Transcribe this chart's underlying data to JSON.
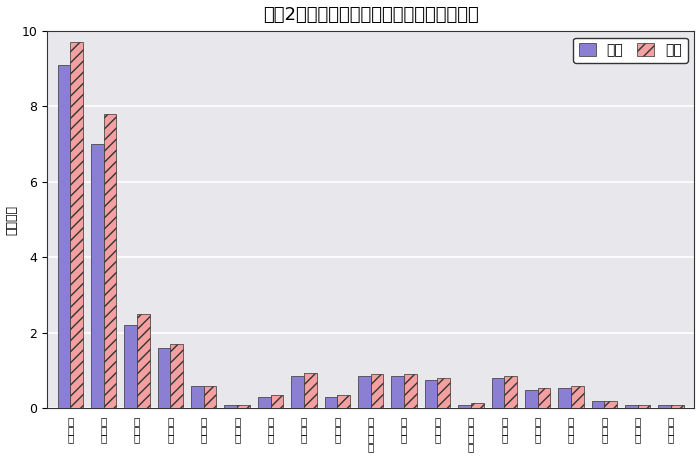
{
  "title": "令和2年の市町村別・男女別人口（鳥取県）",
  "ylabel": "（万人）",
  "ylim": [
    0,
    10
  ],
  "yticks": [
    0,
    2,
    4,
    6,
    8,
    10
  ],
  "categories": [
    "鳥\n取\n市",
    "米\n子\n市",
    "倉\n吉\n市",
    "境\n港\n市",
    "岩\n美\n町",
    "若\n桜\n町",
    "智\n頭\n町",
    "八\n頭\n町",
    "三\n朝\n町",
    "湯\n梨\n浜\n町",
    "琴\n浦\n町",
    "北\n栄\n町",
    "日\n吉\n津\n村",
    "大\n山\n町",
    "南\n部\n町",
    "伯\n耆\n町",
    "日\n南\n町",
    "日\n野\n町",
    "江\n府\n町"
  ],
  "male_values": [
    9.1,
    7.0,
    2.2,
    1.6,
    0.6,
    0.1,
    0.3,
    0.85,
    0.3,
    0.85,
    0.85,
    0.75,
    0.1,
    0.8,
    0.5,
    0.55,
    0.2,
    0.1,
    0.1
  ],
  "female_values": [
    9.7,
    7.8,
    2.5,
    1.7,
    0.6,
    0.1,
    0.35,
    0.95,
    0.35,
    0.9,
    0.9,
    0.8,
    0.15,
    0.85,
    0.55,
    0.6,
    0.2,
    0.1,
    0.1
  ],
  "male_color": "#8B7FD4",
  "female_color": "#F4A0A0",
  "legend_male": "男性",
  "legend_female": "女性",
  "bar_width": 0.38,
  "bg_color": "#E8E8EC",
  "grid_color": "#FFFFFF",
  "title_fontsize": 13,
  "axis_label_fontsize": 9
}
